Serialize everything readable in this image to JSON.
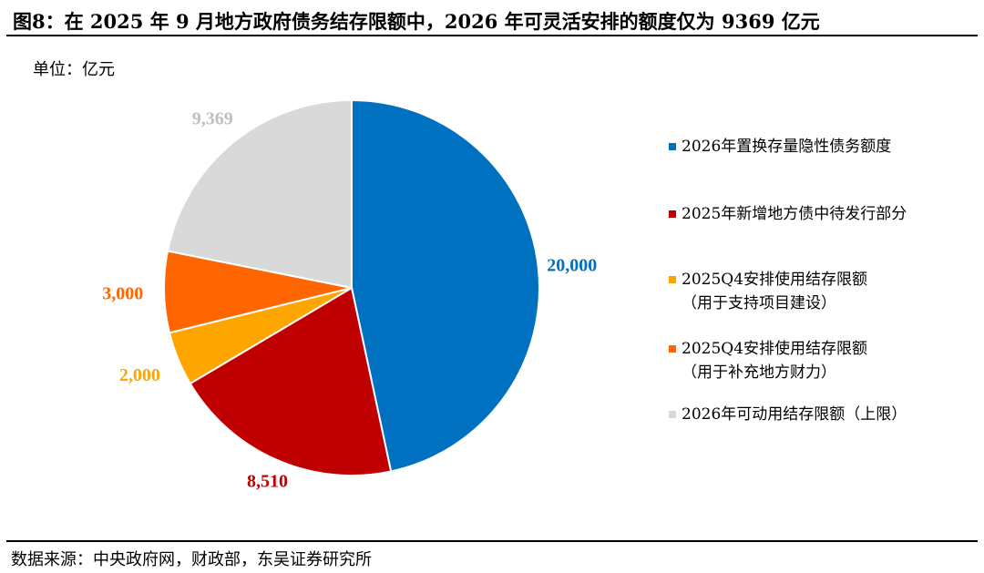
{
  "header": {
    "title": "图8：在 2025 年 9 月地方政府债务结存限额中，2026 年可灵活安排的额度仅为 9369 亿元",
    "unit": "单位：亿元"
  },
  "footer": {
    "source": "数据来源：中央政府网，财政部，东吴证券研究所"
  },
  "chart_data": {
    "type": "pie",
    "title": "图8：在 2025 年 9 月地方政府债务结存限额中，2026 年可灵活安排的额度仅为 9369 亿元",
    "unit": "单位：亿元",
    "legend_position": "right",
    "slices": [
      {
        "name": "2026年置换存量隐性债务额度",
        "name_sub": "",
        "value": 20000,
        "label": "20,000",
        "color": "#0070C0"
      },
      {
        "name": "2025年新增地方债中待发行部分",
        "name_sub": "",
        "value": 8510,
        "label": "8,510",
        "color": "#C00000"
      },
      {
        "name": "2025Q4安排使用结存限额",
        "name_sub": "（用于支持项目建设）",
        "value": 2000,
        "label": "2,000",
        "color": "#FFA500"
      },
      {
        "name": "2025Q4安排使用结存限额",
        "name_sub": "（用于补充地方财力）",
        "value": 3000,
        "label": "3,000",
        "color": "#FF6600"
      },
      {
        "name": "2026年可动用结存限额（上限）",
        "name_sub": "",
        "value": 9369,
        "label": "9,369",
        "color": "#D9D9D9"
      }
    ]
  }
}
